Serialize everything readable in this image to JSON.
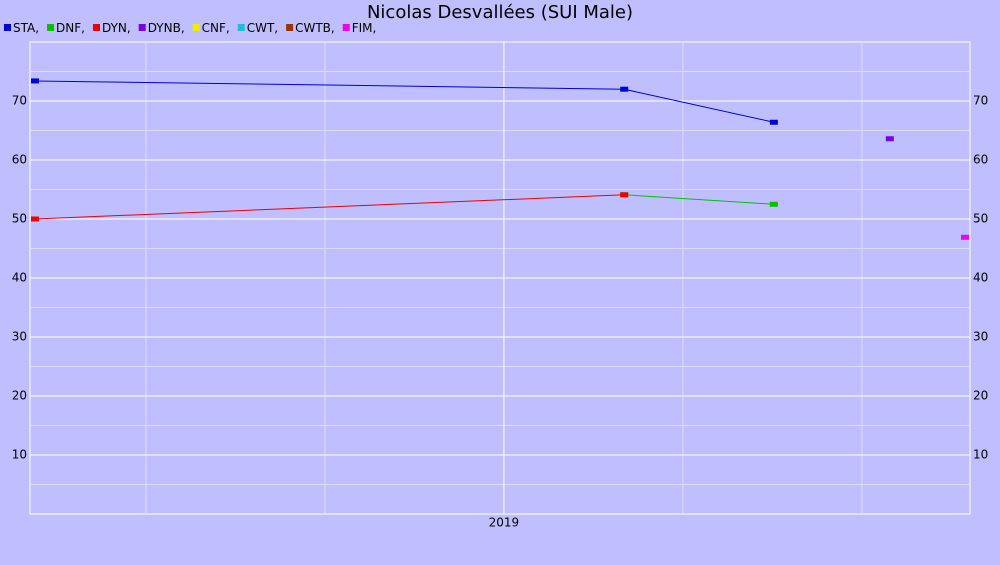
{
  "chart_data": {
    "type": "line",
    "title": "Nicolas Desvallées (SUI Male)",
    "series": [
      {
        "name": "STA,",
        "color": "#0000dd",
        "x": [
          2018.345,
          2019.168,
          2019.377
        ],
        "values": [
          73.4,
          72.0,
          66.4
        ]
      },
      {
        "name": "DNF,",
        "color": "#00c000",
        "x": [
          2019.168,
          2019.377
        ],
        "values": [
          54.1,
          52.5
        ]
      },
      {
        "name": "DYN,",
        "color": "#ee0000",
        "x": [
          2018.345,
          2019.168
        ],
        "values": [
          50.0,
          54.1
        ]
      },
      {
        "name": "DYNB,",
        "color": "#7a00dd",
        "x": [
          2019.539
        ],
        "values": [
          63.6
        ]
      },
      {
        "name": "CNF,",
        "color": "#eeee00",
        "x": [],
        "values": []
      },
      {
        "name": "CWT,",
        "color": "#22bbdd",
        "x": [],
        "values": []
      },
      {
        "name": "CWTB,",
        "color": "#993300",
        "x": [],
        "values": []
      },
      {
        "name": "FIM,",
        "color": "#ee00ee",
        "x": [
          2019.644
        ],
        "values": [
          46.9
        ]
      }
    ],
    "xlim": [
      2018.338,
      2019.651
    ],
    "xticks": [
      {
        "value": 2019,
        "label": "2019"
      }
    ],
    "xgrid_minor": [
      2018.5,
      2018.75,
      2019.25,
      2019.5
    ],
    "ylim": [
      0,
      80
    ],
    "yticks": [
      10,
      20,
      30,
      40,
      50,
      60,
      70
    ],
    "ygrid_minor": [
      5,
      15,
      25,
      35,
      45,
      55,
      65,
      75
    ],
    "grid": true
  }
}
